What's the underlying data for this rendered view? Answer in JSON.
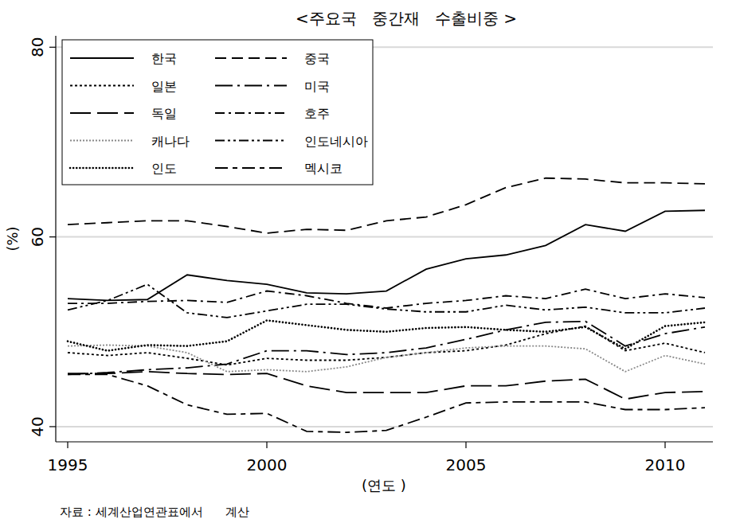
{
  "chart_data": {
    "type": "line",
    "title": "<주요국   중간재   수출비중 >",
    "x_label": "(연도 )",
    "y_label": "(%)",
    "source": "자료 : 세계산업연관표에서      계산",
    "x": [
      1995,
      1996,
      1997,
      1998,
      1999,
      2000,
      2001,
      2002,
      2003,
      2004,
      2005,
      2006,
      2007,
      2008,
      2009,
      2010,
      2011
    ],
    "xlim": [
      1994.7,
      2011.2
    ],
    "xticks": [
      1995,
      2000,
      2005,
      2010
    ],
    "ylim": [
      38.4,
      81.2
    ],
    "yticks": [
      40,
      60,
      80
    ],
    "grid": true,
    "legend": "top-left",
    "series": [
      {
        "name": "한국",
        "color": "#000000",
        "line_style": "solid",
        "values": [
          53.5,
          53.3,
          53.4,
          56.0,
          55.4,
          55.0,
          54.1,
          54.0,
          54.3,
          56.6,
          57.7,
          58.1,
          59.1,
          61.3,
          60.6,
          62.7,
          62.8
        ]
      },
      {
        "name": "중국",
        "color": "#000000",
        "line_style": "dashed",
        "values": [
          61.3,
          61.5,
          61.7,
          61.7,
          61.1,
          60.4,
          60.8,
          60.7,
          61.7,
          62.1,
          63.4,
          65.2,
          66.2,
          66.1,
          65.7,
          65.7,
          65.6
        ]
      },
      {
        "name": "일본",
        "color": "#000000",
        "line_style": "dotted",
        "values": [
          47.8,
          47.5,
          47.8,
          47.2,
          46.5,
          47.2,
          47.0,
          47.0,
          47.3,
          47.8,
          48.0,
          48.6,
          49.8,
          50.6,
          48.0,
          48.8,
          47.8
        ]
      },
      {
        "name": "미국",
        "color": "#000000",
        "line_style": "long-dash-dot",
        "values": [
          45.5,
          45.7,
          46.0,
          46.2,
          46.6,
          48.0,
          48.0,
          47.6,
          47.8,
          48.3,
          49.2,
          50.2,
          51.0,
          51.1,
          48.5,
          49.8,
          50.5
        ]
      },
      {
        "name": "독일",
        "color": "#000000",
        "line_style": "long-dash",
        "values": [
          45.6,
          45.6,
          45.8,
          45.6,
          45.5,
          45.6,
          44.3,
          43.6,
          43.6,
          43.6,
          44.3,
          44.3,
          44.8,
          45.0,
          42.9,
          43.6,
          43.7
        ]
      },
      {
        "name": "호주",
        "color": "#000000",
        "line_style": "dash-dot",
        "values": [
          53.0,
          53.0,
          53.2,
          53.3,
          53.1,
          54.3,
          53.8,
          53.0,
          52.5,
          53.0,
          53.3,
          53.8,
          53.5,
          54.5,
          53.5,
          54.0,
          53.6
        ]
      },
      {
        "name": "캐나다",
        "color": "#888888",
        "line_style": "fine-dotted",
        "values": [
          48.5,
          48.6,
          48.5,
          47.8,
          45.8,
          46.0,
          45.8,
          46.3,
          47.3,
          47.8,
          48.3,
          48.5,
          48.5,
          48.2,
          45.8,
          47.5,
          46.6
        ]
      },
      {
        "name": "인도네시아",
        "color": "#000000",
        "line_style": "dash-dot-dot",
        "values": [
          52.3,
          53.3,
          55.0,
          52.0,
          51.5,
          52.2,
          52.9,
          52.9,
          52.4,
          52.1,
          52.1,
          52.8,
          52.3,
          52.6,
          52.0,
          52.0,
          52.5
        ]
      },
      {
        "name": "인도",
        "color": "#000000",
        "line_style": "round-dotted",
        "values": [
          49.0,
          48.0,
          48.6,
          48.5,
          49.0,
          51.2,
          50.7,
          50.2,
          50.0,
          50.4,
          50.5,
          50.2,
          50.0,
          50.5,
          48.2,
          50.6,
          51.0
        ]
      },
      {
        "name": "멕시코",
        "color": "#000000",
        "line_style": "dash-long-dot",
        "values": [
          45.5,
          45.5,
          44.3,
          42.3,
          41.3,
          41.4,
          39.5,
          39.4,
          39.6,
          41.0,
          42.5,
          42.6,
          42.6,
          42.6,
          41.8,
          41.8,
          42.0
        ]
      }
    ]
  }
}
